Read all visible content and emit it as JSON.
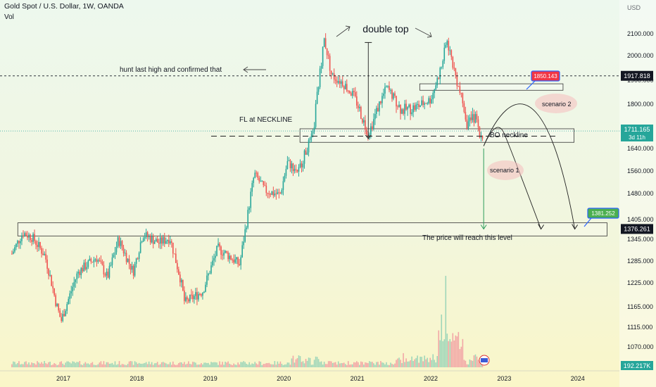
{
  "header": {
    "title": "Gold Spot / U.S. Dollar, 1W, OANDA",
    "sub": "Vol",
    "currency": "USD"
  },
  "colors": {
    "up": "#26a69a",
    "down": "#ef5350",
    "volume_up": "#9fd6b9",
    "volume_down": "#f2a6a6",
    "label_red": "#f23645",
    "label_green": "#4caf50",
    "annotation_blue": "#2962ff"
  },
  "chart_data": {
    "type": "candlestick",
    "symbol": "XAUUSD",
    "interval": "1W",
    "y_ticks": [
      2100,
      2000,
      1900,
      1800,
      1720,
      1640,
      1560,
      1480,
      1405,
      1345,
      1285,
      1225,
      1165,
      1115,
      1070
    ],
    "x_ticks": [
      "2017",
      "2018",
      "2019",
      "2020",
      "2021",
      "2022",
      "2023",
      "2024"
    ],
    "price_path": [
      [
        2016.3,
        1305
      ],
      [
        2016.45,
        1365
      ],
      [
        2016.58,
        1350
      ],
      [
        2016.75,
        1300
      ],
      [
        2016.9,
        1175
      ],
      [
        2016.97,
        1130
      ],
      [
        2017.2,
        1255
      ],
      [
        2017.45,
        1295
      ],
      [
        2017.6,
        1240
      ],
      [
        2017.75,
        1345
      ],
      [
        2017.95,
        1255
      ],
      [
        2018.08,
        1360
      ],
      [
        2018.3,
        1335
      ],
      [
        2018.45,
        1350
      ],
      [
        2018.6,
        1230
      ],
      [
        2018.65,
        1175
      ],
      [
        2018.9,
        1205
      ],
      [
        2019.1,
        1320
      ],
      [
        2019.25,
        1300
      ],
      [
        2019.4,
        1275
      ],
      [
        2019.5,
        1405
      ],
      [
        2019.6,
        1550
      ],
      [
        2019.75,
        1490
      ],
      [
        2019.95,
        1475
      ],
      [
        2020.05,
        1590
      ],
      [
        2020.2,
        1560
      ],
      [
        2020.4,
        1700
      ],
      [
        2020.55,
        2075
      ],
      [
        2020.65,
        1920
      ],
      [
        2020.8,
        1890
      ],
      [
        2020.95,
        1835
      ],
      [
        2021.15,
        1700
      ],
      [
        2021.4,
        1870
      ],
      [
        2021.6,
        1780
      ],
      [
        2021.8,
        1790
      ],
      [
        2022.0,
        1820
      ],
      [
        2022.15,
        1960
      ],
      [
        2022.22,
        2070
      ],
      [
        2022.35,
        1900
      ],
      [
        2022.5,
        1730
      ],
      [
        2022.6,
        1760
      ],
      [
        2022.72,
        1655
      ]
    ],
    "current_price": 1711.165,
    "current_time": "3d 11h",
    "volume_last": "192.217K",
    "levels": [
      {
        "price": 1917.818,
        "style": "dashed",
        "label": "1917.818"
      },
      {
        "price": 1376.261,
        "style": "marker",
        "label": "1376.261"
      }
    ],
    "zones": [
      {
        "from": 1720,
        "to": 1665,
        "start": 2020.22,
        "end": 2023.95
      },
      {
        "from": 1885,
        "to": 1858,
        "start": 2021.85,
        "end": 2023.8
      },
      {
        "from": 1395,
        "to": 1355,
        "start": 2016.38,
        "end": 2024.4
      }
    ],
    "annotations": {
      "double_top": "double top",
      "hunt": "hunt last high and confirmed that",
      "fl_neckline": "FL at NECKLINE",
      "bo_neckline": "BO neckline",
      "scenario1": "scenario 1",
      "scenario2": "scenario 2",
      "target_text": "The price will reach this level",
      "label_high": "1850.143",
      "label_target": "1381.252"
    }
  }
}
